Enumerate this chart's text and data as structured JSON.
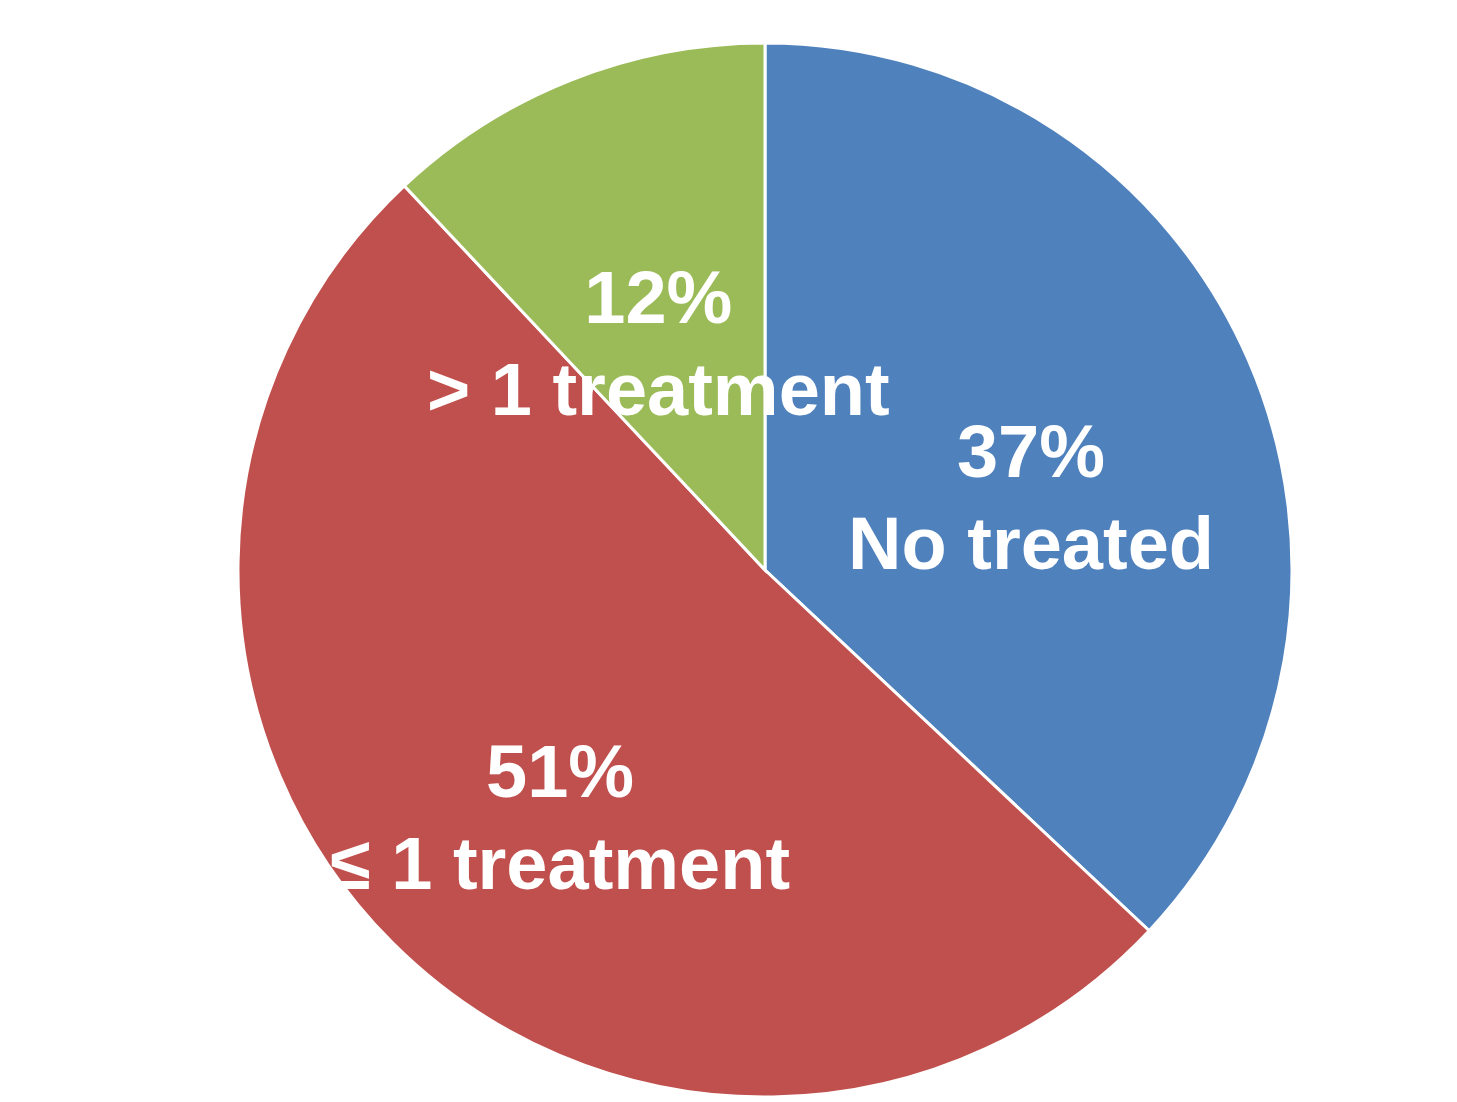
{
  "chart_data": {
    "type": "pie",
    "categories": [
      "No treated",
      "≤ 1 treatment",
      "> 1 treatment"
    ],
    "values": [
      37,
      51,
      12
    ],
    "colors": [
      "#4f81bd",
      "#c0504d",
      "#9bbb59"
    ],
    "value_labels": [
      "37%",
      "51%",
      "12%"
    ]
  }
}
